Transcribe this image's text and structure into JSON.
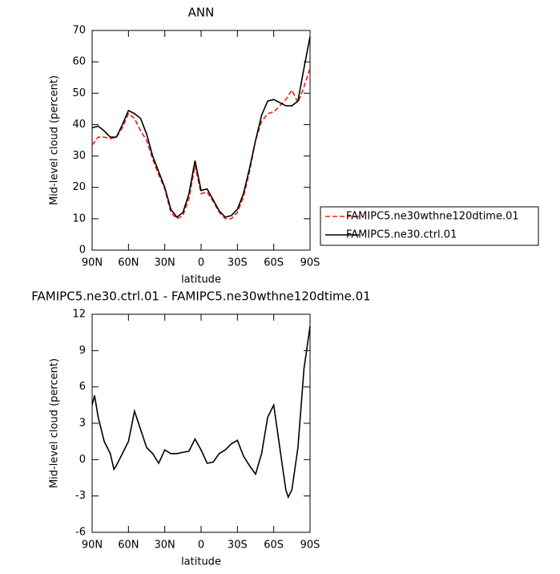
{
  "chart_data": [
    {
      "type": "line",
      "title": "ANN",
      "x_label": "latitude",
      "y_label": "Mid-level cloud (percent)",
      "x": [
        90,
        85,
        80,
        75,
        70,
        65,
        60,
        55,
        50,
        45,
        40,
        35,
        30,
        25,
        20,
        15,
        10,
        5,
        0,
        -5,
        -10,
        -15,
        -20,
        -25,
        -30,
        -35,
        -40,
        -45,
        -50,
        -55,
        -60,
        -65,
        -70,
        -75,
        -80,
        -85,
        -90
      ],
      "xlim": [
        90,
        -90
      ],
      "xticks": [
        {
          "value": 90,
          "label": "90N"
        },
        {
          "value": 60,
          "label": "60N"
        },
        {
          "value": 30,
          "label": "30N"
        },
        0,
        {
          "value": -30,
          "label": "30S"
        },
        {
          "value": -60,
          "label": "60S"
        },
        {
          "value": -90,
          "label": "90S"
        }
      ],
      "ylim": [
        0,
        70
      ],
      "yticks": [
        0,
        10,
        20,
        30,
        40,
        50,
        60,
        70
      ],
      "series": [
        {
          "name": "FAMIPC5.ne30wthne120dtime.01",
          "color": "#e8201a",
          "linestyle": "dashed",
          "values": [
            33.5,
            36,
            36,
            35.5,
            36,
            39,
            43.5,
            42,
            38,
            35,
            29,
            24,
            19.5,
            12,
            10,
            11,
            16.5,
            27,
            18,
            18.5,
            15.5,
            12,
            10,
            10,
            12,
            17,
            25,
            35,
            41,
            43.5,
            44,
            46,
            48,
            51,
            47,
            52,
            58
          ]
        },
        {
          "name": "FAMIPC5.ne30.ctrl.01",
          "color": "#000000",
          "linestyle": "solid",
          "values": [
            39,
            39.5,
            38,
            36,
            36,
            40,
            44.5,
            43.5,
            42,
            37,
            30,
            25,
            20,
            13,
            10.5,
            12,
            18,
            28.5,
            19,
            19.5,
            16,
            12.5,
            10.5,
            11,
            13,
            18,
            26,
            35,
            43,
            47.5,
            48,
            47,
            46,
            46,
            47.5,
            58,
            68
          ]
        }
      ]
    },
    {
      "type": "line",
      "title": "FAMIPC5.ne30.ctrl.01 - FAMIPC5.ne30wthne120dtime.01",
      "x_label": "latitude",
      "y_label": "Mid-level cloud (percent)",
      "x": [
        90,
        88,
        85,
        80,
        75,
        72,
        70,
        65,
        60,
        55,
        50,
        45,
        40,
        35,
        30,
        25,
        20,
        15,
        10,
        5,
        0,
        -5,
        -10,
        -15,
        -20,
        -25,
        -30,
        -35,
        -40,
        -45,
        -50,
        -55,
        -60,
        -65,
        -70,
        -72,
        -75,
        -80,
        -85,
        -90
      ],
      "xlim": [
        90,
        -90
      ],
      "xticks": [
        {
          "value": 90,
          "label": "90N"
        },
        {
          "value": 60,
          "label": "60N"
        },
        {
          "value": 30,
          "label": "30N"
        },
        0,
        {
          "value": -30,
          "label": "30S"
        },
        {
          "value": -60,
          "label": "60S"
        },
        {
          "value": -90,
          "label": "90S"
        }
      ],
      "ylim": [
        -6,
        12
      ],
      "yticks": [
        -6,
        -3,
        0,
        3,
        6,
        9,
        12
      ],
      "series": [
        {
          "color": "#000000",
          "linestyle": "solid",
          "values": [
            4.5,
            5.3,
            3.5,
            1.5,
            0.5,
            -0.8,
            -0.5,
            0.5,
            1.5,
            4.0,
            2.5,
            1.0,
            0.5,
            -0.3,
            0.8,
            0.5,
            0.5,
            0.6,
            0.7,
            1.7,
            0.8,
            -0.3,
            -0.2,
            0.5,
            0.8,
            1.3,
            1.6,
            0.3,
            -0.5,
            -1.2,
            0.5,
            3.5,
            4.5,
            1.0,
            -2.5,
            -3.1,
            -2.5,
            1.0,
            7.5,
            11
          ]
        }
      ]
    }
  ]
}
